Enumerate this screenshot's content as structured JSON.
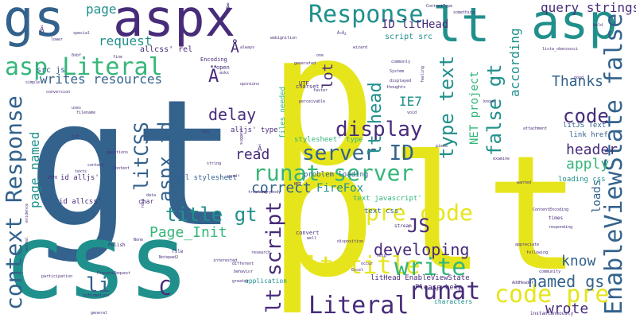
{
  "palette": {
    "yellow": "#e6e51c",
    "blue": "#33628c",
    "teal": "#20908c",
    "purple": "#472c7a",
    "green": "#35b679",
    "lime": "#8fd744"
  },
  "words": [
    {
      "t": "gt",
      "c": "blue",
      "s": 220,
      "v": false
    },
    {
      "t": "lt",
      "c": "blue",
      "s": 200,
      "v": true
    },
    {
      "t": "p",
      "c": "yellow",
      "s": 230,
      "v": false
    },
    {
      "t": "p",
      "c": "yellow",
      "s": 230,
      "v": false
    },
    {
      "t": "lt",
      "c": "yellow",
      "s": 200,
      "v": false
    },
    {
      "t": "css",
      "c": "teal",
      "s": 130,
      "v": false
    },
    {
      "t": "gs",
      "c": "blue",
      "s": 64,
      "v": false
    },
    {
      "t": "aspx",
      "c": "purple",
      "s": 64,
      "v": false
    },
    {
      "t": "lt",
      "c": "teal",
      "s": 60,
      "v": false
    },
    {
      "t": "asp",
      "c": "teal",
      "s": 60,
      "v": false
    },
    {
      "t": "Response",
      "c": "teal",
      "s": 30,
      "v": false
    },
    {
      "t": "asp Literal",
      "c": "green",
      "s": 30,
      "v": false
    },
    {
      "t": "EnableViewState false",
      "c": "blue",
      "s": 30,
      "v": true
    },
    {
      "t": "context Response",
      "c": "blue",
      "s": 28,
      "v": true
    },
    {
      "t": "runat server",
      "c": "green",
      "s": 28,
      "v": false
    },
    {
      "t": "pre code",
      "c": "yellow",
      "s": 28,
      "v": false
    },
    {
      "t": "lt title",
      "c": "yellow",
      "s": 30,
      "v": false
    },
    {
      "t": "write",
      "c": "green",
      "s": 30,
      "v": false
    },
    {
      "t": "code pre",
      "c": "yellow",
      "s": 30,
      "v": false
    },
    {
      "t": "Literal",
      "c": "purple",
      "s": 30,
      "v": false
    },
    {
      "t": "runat",
      "c": "purple",
      "s": 30,
      "v": false
    },
    {
      "t": "server ID",
      "c": "blue",
      "s": 26,
      "v": false
    },
    {
      "t": "display",
      "c": "purple",
      "s": 26,
      "v": false
    },
    {
      "t": "lt script",
      "c": "purple",
      "s": 26,
      "v": true
    },
    {
      "t": "litCSS",
      "c": "blue",
      "s": 24,
      "v": true
    },
    {
      "t": "aspx id",
      "c": "blue",
      "s": 24,
      "v": true
    },
    {
      "t": "title gt",
      "c": "teal",
      "s": 24,
      "v": false
    },
    {
      "t": "JS",
      "c": "purple",
      "s": 24,
      "v": false
    },
    {
      "t": "type text",
      "c": "teal",
      "s": 24,
      "v": true
    },
    {
      "t": "false gt",
      "c": "teal",
      "s": 24,
      "v": true
    },
    {
      "t": "lt head",
      "c": "teal",
      "s": 22,
      "v": true
    },
    {
      "t": "code",
      "c": "purple",
      "s": 24,
      "v": false
    },
    {
      "t": "developing",
      "c": "purple",
      "s": 20,
      "v": false
    },
    {
      "t": "delay",
      "c": "purple",
      "s": 20,
      "v": false
    },
    {
      "t": "header",
      "c": "purple",
      "s": 18,
      "v": false
    },
    {
      "t": "apply",
      "c": "green",
      "s": 18,
      "v": false
    },
    {
      "t": "correct",
      "c": "blue",
      "s": 18,
      "v": false
    },
    {
      "t": "read",
      "c": "purple",
      "s": 18,
      "v": false
    },
    {
      "t": "Page_Init",
      "c": "green",
      "s": 18,
      "v": false
    },
    {
      "t": "li",
      "c": "blue",
      "s": 26,
      "v": false
    },
    {
      "t": "C",
      "c": "purple",
      "s": 26,
      "v": false
    },
    {
      "t": "named gs",
      "c": "blue",
      "s": 20,
      "v": false
    },
    {
      "t": "know",
      "c": "blue",
      "s": 18,
      "v": false
    },
    {
      "t": "wrote",
      "c": "purple",
      "s": 18,
      "v": false
    },
    {
      "t": "Thanks",
      "c": "blue",
      "s": 18,
      "v": false
    },
    {
      "t": "writes resources",
      "c": "blue",
      "s": 16,
      "v": false
    },
    {
      "t": "request",
      "c": "teal",
      "s": 16,
      "v": false
    },
    {
      "t": "page",
      "c": "teal",
      "s": 16,
      "v": false
    },
    {
      "t": "query strings",
      "c": "purple",
      "s": 16,
      "v": false
    },
    {
      "t": "according",
      "c": "teal",
      "s": 16,
      "v": true
    },
    {
      "t": "ID litHead",
      "c": "purple",
      "s": 14,
      "v": false
    },
    {
      "t": "Ä",
      "c": "purple",
      "s": 22,
      "v": false
    },
    {
      "t": "Å",
      "c": "purple",
      "s": 18,
      "v": false
    },
    {
      "t": "lot",
      "c": "purple",
      "s": 18,
      "v": true
    },
    {
      "t": "IE7",
      "c": "teal",
      "s": 16,
      "v": false
    },
    {
      "t": "NET project",
      "c": "green",
      "s": 14,
      "v": true
    },
    {
      "t": "page named",
      "c": "teal",
      "s": 16,
      "v": true
    },
    {
      "t": "FireFox",
      "c": "teal",
      "s": 14,
      "v": false
    },
    {
      "t": "loads",
      "c": "blue",
      "s": 14,
      "v": true
    },
    {
      "t": "script src",
      "c": "teal",
      "s": 10,
      "v": false
    },
    {
      "t": "src js",
      "c": "blue",
      "s": 10,
      "v": false
    },
    {
      "t": "allcss' rel",
      "c": "purple",
      "s": 10,
      "v": false
    },
    {
      "t": "stylesheet' type",
      "c": "green",
      "s": 9,
      "v": false
    },
    {
      "t": "alljs' type",
      "c": "purple",
      "s": 9,
      "v": false
    },
    {
      "t": "rel stylesheet'",
      "c": "blue",
      "s": 9,
      "v": false
    },
    {
      "t": "text javascript'",
      "c": "green",
      "s": 9,
      "v": false
    },
    {
      "t": "text css'",
      "c": "blue",
      "s": 9,
      "v": false
    },
    {
      "t": "id alljs'",
      "c": "purple",
      "s": 9,
      "v": false
    },
    {
      "t": "id allcss'",
      "c": "purple",
      "s": 9,
      "v": false
    },
    {
      "t": "litJS Text",
      "c": "blue",
      "s": 9,
      "v": false
    },
    {
      "t": "link href",
      "c": "blue",
      "s": 9,
      "v": false
    },
    {
      "t": "loading css",
      "c": "teal",
      "s": 9,
      "v": false
    },
    {
      "t": "problem loading",
      "c": "blue",
      "s": 9,
      "v": false
    },
    {
      "t": "litHead EnableViewState",
      "c": "purple",
      "s": 9,
      "v": false
    },
    {
      "t": "Please help",
      "c": "purple",
      "s": 9,
      "v": false
    },
    {
      "t": "files needed",
      "c": "green",
      "s": 9,
      "v": true
    },
    {
      "t": "characters",
      "c": "teal",
      "s": 8,
      "v": false
    },
    {
      "t": "instantaneously",
      "c": "purple",
      "s": 6,
      "v": false
    },
    {
      "t": "application",
      "c": "teal",
      "s": 8,
      "v": false
    },
    {
      "t": "Encoding",
      "c": "purple",
      "s": 7,
      "v": false
    },
    {
      "t": "UTF",
      "c": "purple",
      "s": 7,
      "v": false
    },
    {
      "t": "char",
      "c": "purple",
      "s": 8,
      "v": false
    },
    {
      "t": "open",
      "c": "purple",
      "s": 7,
      "v": false
    },
    {
      "t": "charset",
      "c": "purple",
      "s": 7,
      "v": false
    },
    {
      "t": "convert",
      "c": "purple",
      "s": 7,
      "v": false
    },
    {
      "t": "stream",
      "c": "purple",
      "s": 6,
      "v": false
    },
    {
      "t": "Polish",
      "c": "purple",
      "s": 6,
      "v": false
    },
    {
      "t": "ProcessRequest",
      "c": "purple",
      "s": 5,
      "v": false
    },
    {
      "t": "Notepad2",
      "c": "purple",
      "s": 5,
      "v": false
    },
    {
      "t": "file",
      "c": "purple",
      "s": 6,
      "v": false
    },
    {
      "t": "filename",
      "c": "purple",
      "s": 5,
      "v": false
    },
    {
      "t": "questions",
      "c": "purple",
      "s": 5,
      "v": false
    },
    {
      "t": "context",
      "c": "purple",
      "s": 5,
      "v": false
    },
    {
      "t": "texts",
      "c": "purple",
      "s": 5,
      "v": false
    },
    {
      "t": "special",
      "c": "purple",
      "s": 5,
      "v": false
    },
    {
      "t": "conversion",
      "c": "purple",
      "s": 5,
      "v": false
    },
    {
      "t": "simple",
      "c": "purple",
      "s": 5,
      "v": false
    },
    {
      "t": "general",
      "c": "purple",
      "s": 5,
      "v": false
    },
    {
      "t": "information",
      "c": "purple",
      "s": 5,
      "v": false
    },
    {
      "t": "participation",
      "c": "purple",
      "s": 5,
      "v": false
    },
    {
      "t": "greater",
      "c": "purple",
      "s": 5,
      "v": false
    },
    {
      "t": "interested",
      "c": "purple",
      "s": 5,
      "v": false
    },
    {
      "t": "behavior",
      "c": "purple",
      "s": 5,
      "v": false
    },
    {
      "t": "research",
      "c": "purple",
      "s": 5,
      "v": false
    },
    {
      "t": "Content",
      "c": "purple",
      "s": 5,
      "v": false
    },
    {
      "t": "string",
      "c": "purple",
      "s": 5,
      "v": false
    },
    {
      "t": "word",
      "c": "purple",
      "s": 5,
      "v": false
    },
    {
      "t": "treating",
      "c": "purple",
      "s": 5,
      "v": false
    },
    {
      "t": "opinions",
      "c": "purple",
      "s": 5,
      "v": false
    },
    {
      "t": "generated",
      "c": "purple",
      "s": 5,
      "v": false
    },
    {
      "t": "webignition",
      "c": "purple",
      "s": 5,
      "v": false
    },
    {
      "t": "wizard",
      "c": "purple",
      "s": 5,
      "v": false
    },
    {
      "t": "faster",
      "c": "purple",
      "s": 5,
      "v": false
    },
    {
      "t": "perceivable",
      "c": "purple",
      "s": 5,
      "v": false
    },
    {
      "t": "thoughts",
      "c": "purple",
      "s": 5,
      "v": false
    },
    {
      "t": "displayed",
      "c": "purple",
      "s": 5,
      "v": false
    },
    {
      "t": "System",
      "c": "purple",
      "s": 5,
      "v": false
    },
    {
      "t": "commonly",
      "c": "purple",
      "s": 5,
      "v": false
    },
    {
      "t": "piece",
      "c": "purple",
      "s": 5,
      "v": false
    },
    {
      "t": "void",
      "c": "purple",
      "s": 5,
      "v": false
    },
    {
      "t": "known",
      "c": "purple",
      "s": 5,
      "v": false
    },
    {
      "t": "attachment",
      "c": "purple",
      "s": 5,
      "v": false
    },
    {
      "t": "examine",
      "c": "purple",
      "s": 5,
      "v": false
    },
    {
      "t": "wanted",
      "c": "purple",
      "s": 5,
      "v": false
    },
    {
      "t": "ContentEncoding",
      "c": "purple",
      "s": 5,
      "v": false
    },
    {
      "t": "times",
      "c": "purple",
      "s": 6,
      "v": false
    },
    {
      "t": "responding",
      "c": "purple",
      "s": 5,
      "v": false
    },
    {
      "t": "appreciate",
      "c": "purple",
      "s": 5,
      "v": false
    },
    {
      "t": "following",
      "c": "purple",
      "s": 5,
      "v": false
    },
    {
      "t": "community",
      "c": "purple",
      "s": 5,
      "v": false
    },
    {
      "t": "disposition",
      "c": "purple",
      "s": 5,
      "v": false
    },
    {
      "t": "AddHeader",
      "c": "purple",
      "s": 5,
      "v": false
    },
    {
      "t": "help",
      "c": "purple",
      "s": 5,
      "v": false
    },
    {
      "t": "occur",
      "c": "purple",
      "s": 5,
      "v": false
    },
    {
      "t": "Excel",
      "c": "purple",
      "s": 5,
      "v": false
    },
    {
      "t": "different",
      "c": "purple",
      "s": 5,
      "v": false
    },
    {
      "t": "ContentType",
      "c": "purple",
      "s": 5,
      "v": false
    },
    {
      "t": "lower",
      "c": "purple",
      "s": 5,
      "v": false
    },
    {
      "t": "everybody",
      "c": "purple",
      "s": 5,
      "v": false
    },
    {
      "t": "csv",
      "c": "purple",
      "s": 5,
      "v": false
    },
    {
      "t": "lista_obecnosci",
      "c": "purple",
      "s": 5,
      "v": false
    },
    {
      "t": "something",
      "c": "purple",
      "s": 5,
      "v": false
    },
    {
      "t": "Â»Â¿",
      "c": "purple",
      "s": 5,
      "v": false
    },
    {
      "t": "Ã",
      "c": "purple",
      "s": 9,
      "v": false
    },
    {
      "t": "Ä",
      "c": "purple",
      "s": 9,
      "v": false
    },
    {
      "t": "Å",
      "c": "purple",
      "s": 9,
      "v": false
    },
    {
      "t": "one",
      "c": "purple",
      "s": 5,
      "v": false
    },
    {
      "t": "rif",
      "c": "purple",
      "s": 5,
      "v": false
    },
    {
      "t": "asks",
      "c": "purple",
      "s": 5,
      "v": false
    },
    {
      "t": "well",
      "c": "purple",
      "s": 5,
      "v": false
    },
    {
      "t": "None",
      "c": "purple",
      "s": 5,
      "v": false
    },
    {
      "t": "always",
      "c": "purple",
      "s": 5,
      "v": false
    },
    {
      "t": "0xbf",
      "c": "purple",
      "s": 5,
      "v": false
    },
    {
      "t": "fine",
      "c": "purple",
      "s": 5,
      "v": false
    },
    {
      "t": "good",
      "c": "purple",
      "s": 5,
      "v": false
    },
    {
      "t": "data",
      "c": "purple",
      "s": 5,
      "v": false
    },
    {
      "t": "evidence",
      "c": "purple",
      "s": 5,
      "v": true
    },
    {
      "t": "normal",
      "c": "purple",
      "s": 5,
      "v": true
    },
    {
      "t": "feeling",
      "c": "purple",
      "s": 5,
      "v": true
    },
    {
      "t": "bold",
      "c": "purple",
      "s": 5,
      "v": false
    },
    {
      "t": "suggest",
      "c": "purple",
      "s": 5,
      "v": true
    },
    {
      "t": "uses",
      "c": "purple",
      "s": 5,
      "v": false
    },
    {
      "t": "rdsp",
      "c": "purple",
      "s": 5,
      "v": true
    },
    {
      "t": "UTF8",
      "c": "purple",
      "s": 5,
      "v": false
    },
    {
      "t": "NET",
      "c": "purple",
      "s": 5,
      "v": false
    },
    {
      "t": "using",
      "c": "purple",
      "s": 5,
      "v": false
    }
  ]
}
